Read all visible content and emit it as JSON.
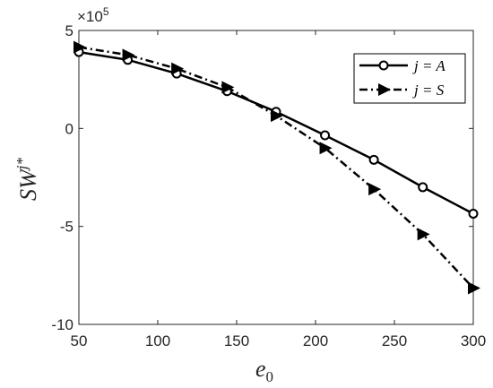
{
  "chart_data": {
    "type": "line",
    "title": "",
    "xlabel": "e",
    "xlabel_sub": "0",
    "ylabel": "SW",
    "ylabel_sup": "j*",
    "exponent_label": "×10",
    "exponent_power": "5",
    "xlim": [
      50,
      300
    ],
    "ylim": [
      -10,
      5
    ],
    "x_ticks": [
      "50",
      "100",
      "150",
      "200",
      "250",
      "300"
    ],
    "y_ticks": [
      "-10",
      "-5",
      "0",
      "5"
    ],
    "x_tick_values": [
      50,
      100,
      150,
      200,
      250,
      300
    ],
    "y_tick_values": [
      -10,
      -5,
      0,
      5
    ],
    "grid": false,
    "legend_position": "top-right",
    "series": [
      {
        "name": "j = A",
        "style": "solid",
        "marker": "circle",
        "color": "#000000",
        "x": [
          50,
          81,
          112,
          144,
          175,
          206,
          237,
          268,
          300
        ],
        "y": [
          3.9,
          3.5,
          2.8,
          1.9,
          0.85,
          -0.35,
          -1.6,
          -3.0,
          -4.35
        ]
      },
      {
        "name": "j = S",
        "style": "dashdot",
        "marker": "triangle-right",
        "color": "#000000",
        "x": [
          50,
          81,
          112,
          144,
          175,
          206,
          237,
          268,
          300
        ],
        "y": [
          4.15,
          3.75,
          3.05,
          2.1,
          0.65,
          -1.0,
          -3.1,
          -5.4,
          -8.15
        ]
      }
    ]
  }
}
